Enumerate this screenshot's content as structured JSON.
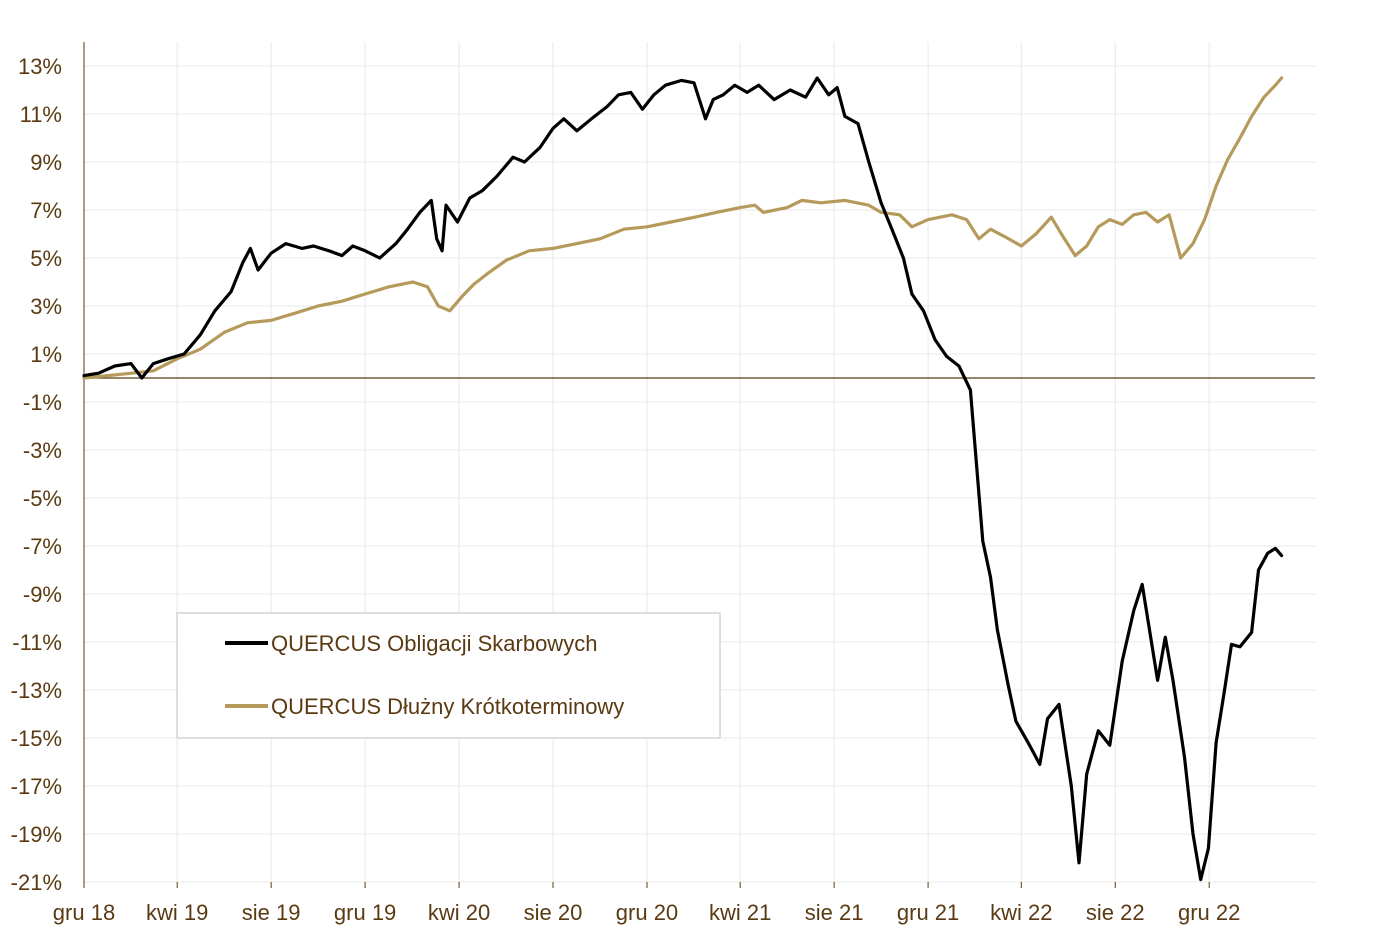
{
  "chart_data": {
    "type": "line",
    "xlabel": "",
    "ylabel": "",
    "x_range": [
      "2018-12-01",
      "2023-01-10"
    ],
    "ylim": [
      -21,
      14
    ],
    "y_ticks": [
      13,
      11,
      9,
      7,
      5,
      3,
      1,
      -1,
      -3,
      -5,
      -7,
      -9,
      -11,
      -13,
      -15,
      -17,
      -19,
      -21
    ],
    "y_tick_labels": [
      "13%",
      "11%",
      "9%",
      "7%",
      "5%",
      "3%",
      "1%",
      "-1%",
      "-3%",
      "-5%",
      "-7%",
      "-9%",
      "-11%",
      "-13%",
      "-15%",
      "-17%",
      "-19%",
      "-21%"
    ],
    "x_ticks": [
      "2018-12-01",
      "2019-04-01",
      "2019-08-01",
      "2019-12-01",
      "2020-04-01",
      "2020-08-01",
      "2020-12-01",
      "2021-04-01",
      "2021-08-01",
      "2021-12-01",
      "2022-04-01",
      "2022-08-01",
      "2022-12-01"
    ],
    "x_tick_labels": [
      "gru 18",
      "kwi 19",
      "sie 19",
      "gru 19",
      "kwi 20",
      "sie 20",
      "gru 20",
      "kwi 21",
      "sie 21",
      "gru 21",
      "kwi 22",
      "sie 22",
      "gru 22"
    ],
    "grid": true,
    "legend_position": "lower-left",
    "series": [
      {
        "name": "QUERCUS Obligacji Skarbowych",
        "color": "#000000",
        "points": [
          [
            "2018-12-01",
            0.1
          ],
          [
            "2018-12-20",
            0.2
          ],
          [
            "2019-01-10",
            0.5
          ],
          [
            "2019-01-31",
            0.6
          ],
          [
            "2019-02-14",
            0.0
          ],
          [
            "2019-03-01",
            0.6
          ],
          [
            "2019-03-20",
            0.8
          ],
          [
            "2019-04-10",
            1.0
          ],
          [
            "2019-05-01",
            1.8
          ],
          [
            "2019-05-20",
            2.8
          ],
          [
            "2019-06-10",
            3.6
          ],
          [
            "2019-06-25",
            4.8
          ],
          [
            "2019-07-05",
            5.4
          ],
          [
            "2019-07-15",
            4.5
          ],
          [
            "2019-08-01",
            5.2
          ],
          [
            "2019-08-20",
            5.6
          ],
          [
            "2019-09-10",
            5.4
          ],
          [
            "2019-09-25",
            5.5
          ],
          [
            "2019-10-15",
            5.3
          ],
          [
            "2019-11-01",
            5.1
          ],
          [
            "2019-11-15",
            5.5
          ],
          [
            "2019-12-01",
            5.3
          ],
          [
            "2019-12-20",
            5.0
          ],
          [
            "2020-01-10",
            5.6
          ],
          [
            "2020-01-25",
            6.2
          ],
          [
            "2020-02-10",
            6.9
          ],
          [
            "2020-02-25",
            7.4
          ],
          [
            "2020-03-03",
            5.8
          ],
          [
            "2020-03-10",
            5.3
          ],
          [
            "2020-03-15",
            7.2
          ],
          [
            "2020-03-30",
            6.5
          ],
          [
            "2020-04-15",
            7.5
          ],
          [
            "2020-05-01",
            7.8
          ],
          [
            "2020-05-20",
            8.4
          ],
          [
            "2020-06-10",
            9.2
          ],
          [
            "2020-06-25",
            9.0
          ],
          [
            "2020-07-15",
            9.6
          ],
          [
            "2020-08-01",
            10.4
          ],
          [
            "2020-08-15",
            10.8
          ],
          [
            "2020-09-01",
            10.3
          ],
          [
            "2020-09-20",
            10.8
          ],
          [
            "2020-10-10",
            11.3
          ],
          [
            "2020-10-25",
            11.8
          ],
          [
            "2020-11-10",
            11.9
          ],
          [
            "2020-11-25",
            11.2
          ],
          [
            "2020-12-10",
            11.8
          ],
          [
            "2020-12-25",
            12.2
          ],
          [
            "2021-01-15",
            12.4
          ],
          [
            "2021-01-31",
            12.3
          ],
          [
            "2021-02-15",
            10.8
          ],
          [
            "2021-02-25",
            11.6
          ],
          [
            "2021-03-10",
            11.8
          ],
          [
            "2021-03-25",
            12.2
          ],
          [
            "2021-04-10",
            11.9
          ],
          [
            "2021-04-25",
            12.2
          ],
          [
            "2021-05-15",
            11.6
          ],
          [
            "2021-06-05",
            12.0
          ],
          [
            "2021-06-25",
            11.7
          ],
          [
            "2021-07-10",
            12.5
          ],
          [
            "2021-07-25",
            11.8
          ],
          [
            "2021-08-05",
            12.1
          ],
          [
            "2021-08-15",
            10.9
          ],
          [
            "2021-09-01",
            10.6
          ],
          [
            "2021-09-15",
            9.0
          ],
          [
            "2021-10-01",
            7.3
          ],
          [
            "2021-10-15",
            6.2
          ],
          [
            "2021-10-30",
            5.0
          ],
          [
            "2021-11-10",
            3.5
          ],
          [
            "2021-11-25",
            2.8
          ],
          [
            "2021-12-10",
            1.6
          ],
          [
            "2021-12-25",
            0.9
          ],
          [
            "2022-01-10",
            0.5
          ],
          [
            "2022-01-25",
            -0.5
          ],
          [
            "2022-02-10",
            -6.8
          ],
          [
            "2022-02-20",
            -8.3
          ],
          [
            "2022-03-01",
            -10.5
          ],
          [
            "2022-03-15",
            -12.8
          ],
          [
            "2022-03-25",
            -14.3
          ],
          [
            "2022-04-10",
            -15.2
          ],
          [
            "2022-04-25",
            -16.1
          ],
          [
            "2022-05-05",
            -14.2
          ],
          [
            "2022-05-20",
            -13.6
          ],
          [
            "2022-06-05",
            -17.0
          ],
          [
            "2022-06-15",
            -20.2
          ],
          [
            "2022-06-25",
            -16.5
          ],
          [
            "2022-07-10",
            -14.7
          ],
          [
            "2022-07-25",
            -15.3
          ],
          [
            "2022-08-10",
            -11.8
          ],
          [
            "2022-08-25",
            -9.7
          ],
          [
            "2022-09-05",
            -8.6
          ],
          [
            "2022-09-15",
            -10.6
          ],
          [
            "2022-09-25",
            -12.6
          ],
          [
            "2022-10-05",
            -10.8
          ],
          [
            "2022-10-15",
            -12.6
          ],
          [
            "2022-10-30",
            -15.8
          ],
          [
            "2022-11-10",
            -19.0
          ],
          [
            "2022-11-20",
            -20.9
          ],
          [
            "2022-11-30",
            -19.6
          ],
          [
            "2022-12-10",
            -15.2
          ],
          [
            "2022-12-20",
            -13.2
          ],
          [
            "2022-12-30",
            -11.1
          ],
          [
            "2023-01-10",
            -11.2
          ],
          [
            "2023-01-25",
            -10.6
          ],
          [
            "2023-02-03",
            -8.0
          ],
          [
            "2023-02-15",
            -7.3
          ],
          [
            "2023-02-25",
            -7.1
          ],
          [
            "2023-03-05",
            -7.4
          ]
        ]
      },
      {
        "name": "QUERCUS Dłużny Krótkoterminowy",
        "color": "#b59a5b",
        "points": [
          [
            "2018-12-01",
            0.0
          ],
          [
            "2019-01-01",
            0.1
          ],
          [
            "2019-02-01",
            0.2
          ],
          [
            "2019-03-01",
            0.3
          ],
          [
            "2019-04-01",
            0.8
          ],
          [
            "2019-05-01",
            1.2
          ],
          [
            "2019-06-01",
            1.9
          ],
          [
            "2019-07-01",
            2.3
          ],
          [
            "2019-08-01",
            2.4
          ],
          [
            "2019-09-01",
            2.7
          ],
          [
            "2019-10-01",
            3.0
          ],
          [
            "2019-11-01",
            3.2
          ],
          [
            "2019-12-01",
            3.5
          ],
          [
            "2020-01-01",
            3.8
          ],
          [
            "2020-02-01",
            4.0
          ],
          [
            "2020-02-20",
            3.8
          ],
          [
            "2020-03-05",
            3.0
          ],
          [
            "2020-03-20",
            2.8
          ],
          [
            "2020-04-05",
            3.4
          ],
          [
            "2020-04-20",
            3.9
          ],
          [
            "2020-05-10",
            4.4
          ],
          [
            "2020-06-01",
            4.9
          ],
          [
            "2020-07-01",
            5.3
          ],
          [
            "2020-08-01",
            5.4
          ],
          [
            "2020-09-01",
            5.6
          ],
          [
            "2020-10-01",
            5.8
          ],
          [
            "2020-11-01",
            6.2
          ],
          [
            "2020-12-01",
            6.3
          ],
          [
            "2021-01-01",
            6.5
          ],
          [
            "2021-02-01",
            6.7
          ],
          [
            "2021-03-01",
            6.9
          ],
          [
            "2021-04-01",
            7.1
          ],
          [
            "2021-04-20",
            7.2
          ],
          [
            "2021-05-01",
            6.9
          ],
          [
            "2021-06-01",
            7.1
          ],
          [
            "2021-06-20",
            7.4
          ],
          [
            "2021-07-15",
            7.3
          ],
          [
            "2021-08-15",
            7.4
          ],
          [
            "2021-09-15",
            7.2
          ],
          [
            "2021-10-01",
            6.9
          ],
          [
            "2021-10-25",
            6.8
          ],
          [
            "2021-11-10",
            6.3
          ],
          [
            "2021-12-01",
            6.6
          ],
          [
            "2022-01-01",
            6.8
          ],
          [
            "2022-01-20",
            6.6
          ],
          [
            "2022-02-05",
            5.8
          ],
          [
            "2022-02-20",
            6.2
          ],
          [
            "2022-03-10",
            5.9
          ],
          [
            "2022-04-01",
            5.5
          ],
          [
            "2022-04-20",
            6.0
          ],
          [
            "2022-05-10",
            6.7
          ],
          [
            "2022-05-25",
            5.9
          ],
          [
            "2022-06-10",
            5.1
          ],
          [
            "2022-06-25",
            5.5
          ],
          [
            "2022-07-10",
            6.3
          ],
          [
            "2022-07-25",
            6.6
          ],
          [
            "2022-08-10",
            6.4
          ],
          [
            "2022-08-25",
            6.8
          ],
          [
            "2022-09-10",
            6.9
          ],
          [
            "2022-09-25",
            6.5
          ],
          [
            "2022-10-10",
            6.8
          ],
          [
            "2022-10-25",
            5.0
          ],
          [
            "2022-11-10",
            5.6
          ],
          [
            "2022-11-25",
            6.6
          ],
          [
            "2022-12-10",
            8.0
          ],
          [
            "2022-12-25",
            9.1
          ],
          [
            "2023-01-10",
            10.0
          ],
          [
            "2023-01-25",
            10.9
          ],
          [
            "2023-02-10",
            11.7
          ],
          [
            "2023-02-25",
            12.2
          ],
          [
            "2023-03-05",
            12.5
          ]
        ]
      }
    ],
    "reference_line": {
      "y": 0,
      "color": "#5a3a12"
    },
    "text_color": "#5a3a12",
    "grid_color": "#e8e8e8",
    "axis_color": "#5a3a12"
  }
}
